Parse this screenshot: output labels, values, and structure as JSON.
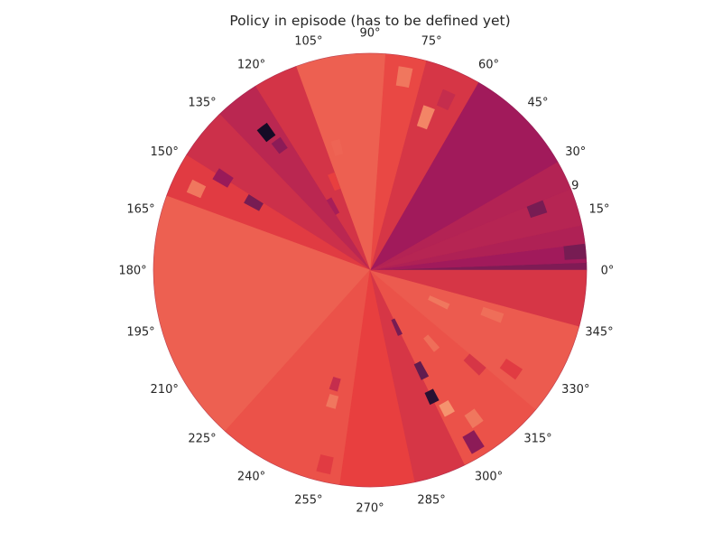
{
  "chart_data": {
    "type": "polar-heatmap",
    "title": "Policy in episode (has to be defined yet)",
    "theta_unit": "degrees",
    "theta_tick_labels": [
      "0°",
      "15°",
      "30°",
      "45°",
      "60°",
      "75°",
      "90°",
      "105°",
      "120°",
      "135°",
      "150°",
      "165°",
      "180°",
      "195°",
      "210°",
      "225°",
      "240°",
      "255°",
      "270°",
      "285°",
      "300°",
      "315°",
      "330°",
      "345°"
    ],
    "radial_tick_labels": [
      "9"
    ],
    "grid": false,
    "colormap": "rocket",
    "colormap_stops": [
      "#03051a",
      "#4c1d4b",
      "#a11a5b",
      "#e83f3f",
      "#f69c73",
      "#faebdd"
    ],
    "sectors": [
      {
        "theta_start": 0,
        "theta_end": 2,
        "value": 0.32
      },
      {
        "theta_start": 2,
        "theta_end": 7,
        "value": 0.4
      },
      {
        "theta_start": 7,
        "theta_end": 12,
        "value": 0.44
      },
      {
        "theta_start": 12,
        "theta_end": 22,
        "value": 0.46
      },
      {
        "theta_start": 22,
        "theta_end": 30,
        "value": 0.45
      },
      {
        "theta_start": 30,
        "theta_end": 60,
        "value": 0.4
      },
      {
        "theta_start": 60,
        "theta_end": 75,
        "value": 0.55
      },
      {
        "theta_start": 75,
        "theta_end": 86,
        "value": 0.62
      },
      {
        "theta_start": 86,
        "theta_end": 110,
        "value": 0.67
      },
      {
        "theta_start": 110,
        "theta_end": 122,
        "value": 0.54
      },
      {
        "theta_start": 122,
        "theta_end": 134,
        "value": 0.47
      },
      {
        "theta_start": 134,
        "theta_end": 148,
        "value": 0.52
      },
      {
        "theta_start": 148,
        "theta_end": 160,
        "value": 0.58
      },
      {
        "theta_start": 160,
        "theta_end": 228,
        "value": 0.67
      },
      {
        "theta_start": 228,
        "theta_end": 262,
        "value": 0.64
      },
      {
        "theta_start": 262,
        "theta_end": 282,
        "value": 0.6
      },
      {
        "theta_start": 282,
        "theta_end": 296,
        "value": 0.55
      },
      {
        "theta_start": 296,
        "theta_end": 320,
        "value": 0.64
      },
      {
        "theta_start": 320,
        "theta_end": 345,
        "value": 0.66
      },
      {
        "theta_start": 345,
        "theta_end": 360,
        "value": 0.55
      }
    ],
    "rings": [
      {
        "theta": 127,
        "r_start": 0.76,
        "r_end": 0.83,
        "value": 0.05
      },
      {
        "theta": 126,
        "r_start": 0.68,
        "r_end": 0.74,
        "value": 0.35
      },
      {
        "theta": 150,
        "r_start": 0.58,
        "r_end": 0.66,
        "value": 0.3
      },
      {
        "theta": 148,
        "r_start": 0.76,
        "r_end": 0.84,
        "value": 0.38
      },
      {
        "theta": 155,
        "r_start": 0.85,
        "r_end": 0.92,
        "value": 0.72
      },
      {
        "theta": 120,
        "r_start": 0.3,
        "r_end": 0.38,
        "value": 0.42
      },
      {
        "theta": 112,
        "r_start": 0.4,
        "r_end": 0.48,
        "value": 0.6
      },
      {
        "theta": 105,
        "r_start": 0.55,
        "r_end": 0.62,
        "value": 0.68
      },
      {
        "theta": 70,
        "r_start": 0.7,
        "r_end": 0.8,
        "value": 0.75
      },
      {
        "theta": 66,
        "r_start": 0.82,
        "r_end": 0.9,
        "value": 0.5
      },
      {
        "theta": 80,
        "r_start": 0.86,
        "r_end": 0.95,
        "value": 0.72
      },
      {
        "theta": 20,
        "r_start": 0.78,
        "r_end": 0.86,
        "value": 0.3
      },
      {
        "theta": 5,
        "r_start": 0.9,
        "r_end": 1.0,
        "value": 0.3
      },
      {
        "theta": 295,
        "r_start": 0.25,
        "r_end": 0.33,
        "value": 0.3
      },
      {
        "theta": 297,
        "r_start": 0.48,
        "r_end": 0.56,
        "value": 0.25
      },
      {
        "theta": 296,
        "r_start": 0.62,
        "r_end": 0.68,
        "value": 0.1
      },
      {
        "theta": 299,
        "r_start": 0.7,
        "r_end": 0.76,
        "value": 0.78
      },
      {
        "theta": 301,
        "r_start": 0.88,
        "r_end": 0.97,
        "value": 0.35
      },
      {
        "theta": 305,
        "r_start": 0.8,
        "r_end": 0.87,
        "value": 0.72
      },
      {
        "theta": 310,
        "r_start": 0.4,
        "r_end": 0.48,
        "value": 0.7
      },
      {
        "theta": 318,
        "r_start": 0.6,
        "r_end": 0.7,
        "value": 0.55
      },
      {
        "theta": 325,
        "r_start": 0.75,
        "r_end": 0.84,
        "value": 0.58
      },
      {
        "theta": 253,
        "r_start": 0.52,
        "r_end": 0.58,
        "value": 0.5
      },
      {
        "theta": 254,
        "r_start": 0.6,
        "r_end": 0.66,
        "value": 0.72
      },
      {
        "theta": 257,
        "r_start": 0.88,
        "r_end": 0.96,
        "value": 0.58
      },
      {
        "theta": 335,
        "r_start": 0.3,
        "r_end": 0.4,
        "value": 0.72
      },
      {
        "theta": 340,
        "r_start": 0.55,
        "r_end": 0.65,
        "value": 0.7
      }
    ]
  }
}
